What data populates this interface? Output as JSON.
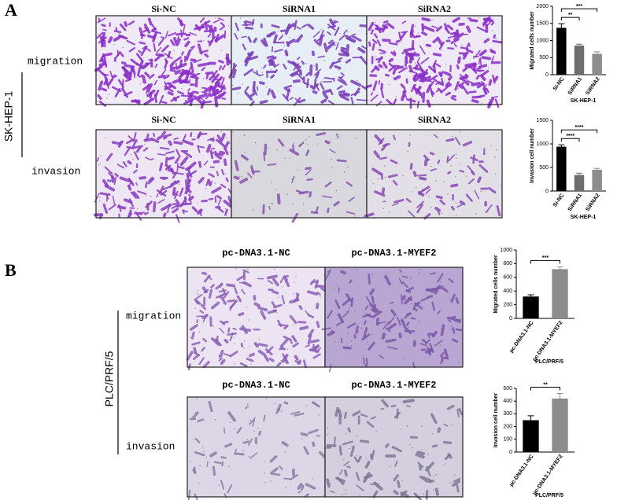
{
  "panels": [
    {
      "label": "A",
      "group": "SK-HEP-1",
      "rows": [
        {
          "name": "migration",
          "images": [
            "Si-NC",
            "SiRNA1",
            "SiRNA2"
          ]
        },
        {
          "name": "invasion",
          "images": [
            "Si-NC",
            "SiRNA1",
            "SiRNA2"
          ]
        }
      ]
    },
    {
      "label": "B",
      "group": "PLC/PRF/5",
      "rows": [
        {
          "name": "migration",
          "images": [
            "pc-DNA3.1-NC",
            "pc-DNA3.1-MYEF2"
          ]
        },
        {
          "name": "invasion",
          "images": [
            "pc-DNA3.1-NC",
            "pc-DNA3.1-MYEF2"
          ]
        }
      ]
    }
  ],
  "chart_data": [
    {
      "type": "bar",
      "ylabel": "Migrated cells number",
      "xlabel": "SK-HEP-1",
      "categories": [
        "Si-NC",
        "SiRNA1",
        "SiRNA2"
      ],
      "values": [
        1370,
        850,
        610
      ],
      "errors": [
        120,
        40,
        60
      ],
      "colors": [
        "#000000",
        "#6e6e6e",
        "#8c8c8c"
      ],
      "ylim": [
        0,
        2000
      ],
      "yticks": [
        0,
        500,
        1000,
        1500,
        2000
      ],
      "significance": [
        {
          "label": "**",
          "pair": [
            0,
            1
          ]
        },
        {
          "label": "***",
          "pair": [
            0,
            2
          ]
        }
      ]
    },
    {
      "type": "bar",
      "ylabel": "Invasion cell number",
      "xlabel": "SK-HEP-1",
      "categories": [
        "Si-NC",
        "SiRNA1",
        "SiRNA2"
      ],
      "values": [
        940,
        340,
        450
      ],
      "errors": [
        40,
        40,
        30
      ],
      "colors": [
        "#000000",
        "#6e6e6e",
        "#8c8c8c"
      ],
      "ylim": [
        0,
        1500
      ],
      "yticks": [
        0,
        500,
        1000,
        1500
      ],
      "significance": [
        {
          "label": "****",
          "pair": [
            0,
            1
          ]
        },
        {
          "label": "****",
          "pair": [
            0,
            2
          ]
        }
      ]
    },
    {
      "type": "bar",
      "ylabel": "Migrated cells number",
      "xlabel": "PLC/PRF/5",
      "categories": [
        "pc-DNA3.1-NC",
        "pc-DNA3.1-MYEF2"
      ],
      "values": [
        320,
        720
      ],
      "errors": [
        25,
        35
      ],
      "colors": [
        "#000000",
        "#8c8c8c"
      ],
      "ylim": [
        0,
        1000
      ],
      "yticks": [
        0,
        200,
        400,
        600,
        800,
        1000
      ],
      "significance": [
        {
          "label": "***",
          "pair": [
            0,
            1
          ]
        }
      ]
    },
    {
      "type": "bar",
      "ylabel": "Invasion cell number",
      "xlabel": "PLC/PRF/5",
      "categories": [
        "pc-DNA3.1-NC",
        "pc-DNA3.1-MYEF2"
      ],
      "values": [
        250,
        420
      ],
      "errors": [
        35,
        40
      ],
      "colors": [
        "#000000",
        "#8c8c8c"
      ],
      "ylim": [
        0,
        500
      ],
      "yticks": [
        0,
        100,
        200,
        300,
        400,
        500
      ],
      "significance": [
        {
          "label": "**",
          "pair": [
            0,
            1
          ]
        }
      ]
    }
  ]
}
